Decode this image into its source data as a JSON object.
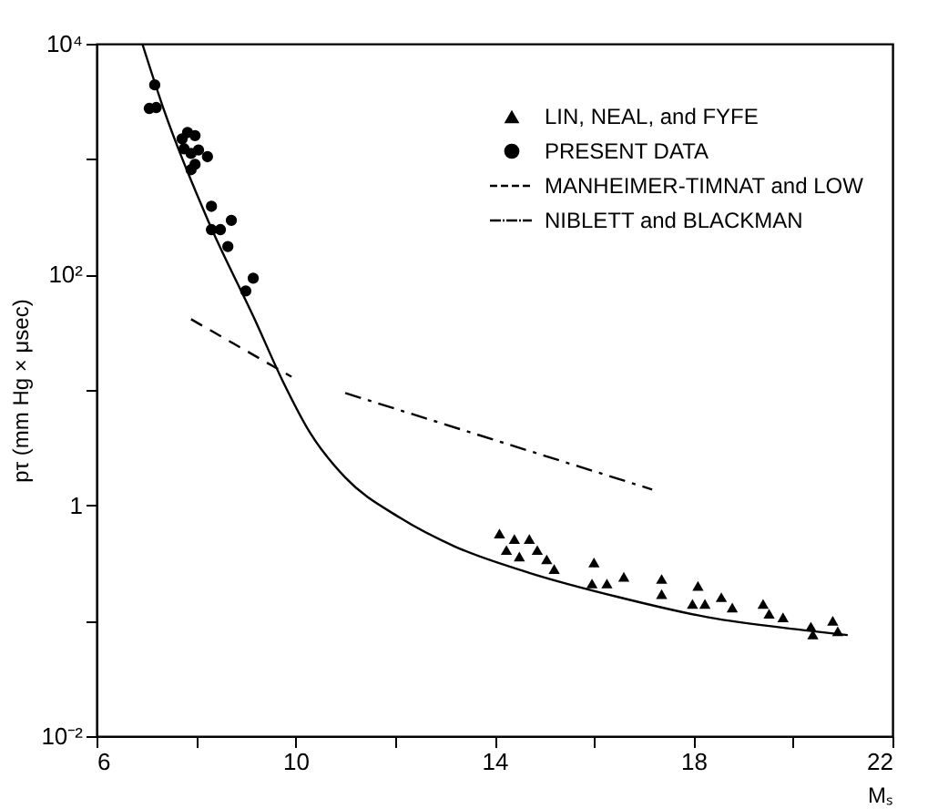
{
  "chart_data": {
    "type": "scatter",
    "xlabel": "Mₛ",
    "ylabel": "pτ (mm Hg × μsec)",
    "xlim": [
      6,
      22
    ],
    "ylim": [
      0.01,
      10000
    ],
    "log": "y",
    "grid": false,
    "legend": "top right",
    "xticks": [
      6,
      {
        "value": 8,
        "label": null
      },
      10,
      {
        "value": 12,
        "label": null
      },
      14,
      {
        "value": 16,
        "label": null
      },
      18,
      {
        "value": 20,
        "label": null
      },
      22
    ],
    "yticks": [
      {
        "value": 0.01,
        "label": "10⁻²"
      },
      {
        "value": 0.1,
        "label": null
      },
      1,
      {
        "value": 10,
        "label": null
      },
      {
        "value": 100,
        "label": "10²"
      },
      {
        "value": 1000,
        "label": null
      },
      {
        "value": 10000,
        "label": "10⁴"
      }
    ],
    "series": [
      {
        "name": "LIN, NEAL, and FYFE",
        "marker": "triangle",
        "color": "#000000",
        "x": [
          14.1,
          14.4,
          14.24,
          14.5,
          14.7,
          14.86,
          15.05,
          15.2,
          16.0,
          15.96,
          16.26,
          16.6,
          17.36,
          17.36,
          18.09,
          17.98,
          18.23,
          18.56,
          18.78,
          19.4,
          19.52,
          19.8,
          20.36,
          20.4,
          20.8,
          20.9
        ],
        "values": [
          0.57,
          0.51,
          0.41,
          0.36,
          0.51,
          0.41,
          0.34,
          0.28,
          0.32,
          0.21,
          0.21,
          0.24,
          0.23,
          0.17,
          0.2,
          0.14,
          0.14,
          0.16,
          0.13,
          0.14,
          0.115,
          0.107,
          0.089,
          0.076,
          0.1,
          0.081
        ]
      },
      {
        "name": "PRESENT DATA",
        "marker": "circle",
        "color": "#000000",
        "x": [
          7.17,
          7.06,
          7.2,
          7.83,
          7.98,
          7.72,
          7.76,
          8.05,
          8.23,
          7.9,
          7.98,
          7.9,
          8.31,
          8.31,
          8.49,
          8.71,
          8.64,
          9.0,
          9.15
        ],
        "values": [
          4400,
          2750,
          2800,
          1700,
          1600,
          1500,
          1230,
          1200,
          1050,
          1120,
          900,
          810,
          390,
          245,
          245,
          295,
          175,
          72,
          93
        ]
      },
      {
        "name": "MANHEIMER-TIMNAT and LOW",
        "type": "line",
        "line_style": "dashed",
        "color": "#000000",
        "x": [
          7.9,
          9.92
        ],
        "values": [
          41,
          13
        ]
      },
      {
        "name": "NIBLETT and BLACKMAN",
        "type": "line",
        "line_style": "dashdot",
        "color": "#000000",
        "x": [
          11.0,
          17.17
        ],
        "values": [
          9.4,
          1.37
        ]
      },
      {
        "type": "line",
        "line_style": "solid",
        "color": "#000000",
        "x": [
          6.92,
          7.36,
          8.27,
          9.19,
          9.74,
          10.3,
          11.0,
          12.1,
          13.2,
          14.7,
          16.5,
          18.3,
          20.2,
          21.1
        ],
        "values": [
          10000,
          2630,
          275,
          40,
          12,
          4.2,
          1.74,
          0.78,
          0.44,
          0.26,
          0.16,
          0.107,
          0.083,
          0.075
        ]
      }
    ]
  }
}
